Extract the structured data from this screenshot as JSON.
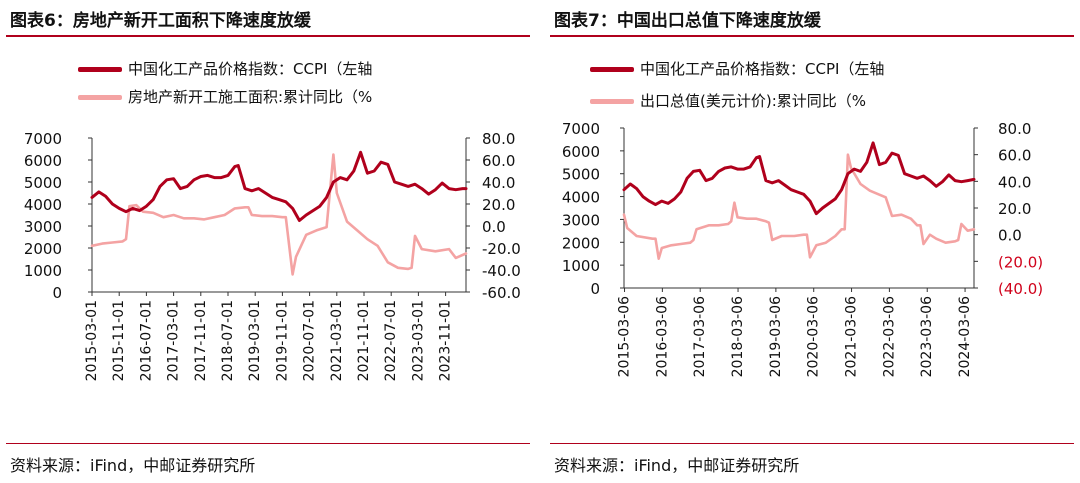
{
  "colors": {
    "accent": "#b0001c",
    "ccpi": "#b0001c",
    "secondary": "#f4a3a3",
    "negative_tick": "#d0021b"
  },
  "source_text": "资料来源：iFind，中邮证券研究所",
  "panels": [
    {
      "title": "图表6：房地产新开工面积下降速度放缓",
      "legend": [
        "中国化工产品价格指数：CCPI（左轴",
        "房地产新开工施工面积:累计同比（%"
      ]
    },
    {
      "title": "图表7：中国出口总值下降速度放缓",
      "legend": [
        "中国化工产品价格指数：CCPI（左轴",
        "出口总值(美元计价):累计同比（%"
      ]
    }
  ],
  "chart_data": [
    {
      "type": "line",
      "title": "图表6：房地产新开工面积下降速度放缓",
      "x_range": [
        "2015-03",
        "2024-05"
      ],
      "x_tick_labels": [
        "2015-03-01",
        "2015-11-01",
        "2016-07-01",
        "2017-03-01",
        "2017-11-01",
        "2018-07-01",
        "2019-03-01",
        "2019-11-01",
        "2020-07-01",
        "2021-03-01",
        "2021-11-01",
        "2022-07-01",
        "2023-03-01",
        "2023-11-01"
      ],
      "y_left": {
        "ticks": [
          "0",
          "1000",
          "2000",
          "3000",
          "4000",
          "5000",
          "6000",
          "7000"
        ],
        "range": [
          0,
          7000
        ]
      },
      "y_right": {
        "ticks": [
          "-60.0",
          "-40.0",
          "-20.0",
          "0.0",
          "20.0",
          "40.0",
          "60.0",
          "80.0"
        ],
        "range": [
          -60,
          80
        ]
      },
      "grid": false,
      "legend_position": "top",
      "series": [
        {
          "name": "中国化工产品价格指数：CCPI（左轴",
          "axis": "left",
          "color": "#b0001c",
          "points": [
            [
              "2015-03",
              4300
            ],
            [
              "2015-05",
              4550
            ],
            [
              "2015-07",
              4350
            ],
            [
              "2015-09",
              4000
            ],
            [
              "2015-11",
              3800
            ],
            [
              "2016-01",
              3650
            ],
            [
              "2016-03",
              3800
            ],
            [
              "2016-05",
              3700
            ],
            [
              "2016-07",
              3900
            ],
            [
              "2016-09",
              4200
            ],
            [
              "2016-11",
              4800
            ],
            [
              "2017-01",
              5100
            ],
            [
              "2017-03",
              5150
            ],
            [
              "2017-05",
              4700
            ],
            [
              "2017-07",
              4800
            ],
            [
              "2017-09",
              5100
            ],
            [
              "2017-11",
              5250
            ],
            [
              "2018-01",
              5300
            ],
            [
              "2018-03",
              5200
            ],
            [
              "2018-05",
              5200
            ],
            [
              "2018-07",
              5300
            ],
            [
              "2018-09",
              5700
            ],
            [
              "2018-10",
              5750
            ],
            [
              "2018-12",
              4700
            ],
            [
              "2019-02",
              4600
            ],
            [
              "2019-04",
              4700
            ],
            [
              "2019-06",
              4500
            ],
            [
              "2019-08",
              4300
            ],
            [
              "2019-10",
              4200
            ],
            [
              "2019-12",
              4100
            ],
            [
              "2020-02",
              3800
            ],
            [
              "2020-04",
              3250
            ],
            [
              "2020-06",
              3500
            ],
            [
              "2020-08",
              3700
            ],
            [
              "2020-10",
              3900
            ],
            [
              "2020-12",
              4300
            ],
            [
              "2021-02",
              5000
            ],
            [
              "2021-04",
              5200
            ],
            [
              "2021-06",
              5100
            ],
            [
              "2021-08",
              5500
            ],
            [
              "2021-10",
              6350
            ],
            [
              "2021-12",
              5400
            ],
            [
              "2022-02",
              5500
            ],
            [
              "2022-04",
              5900
            ],
            [
              "2022-06",
              5800
            ],
            [
              "2022-08",
              5000
            ],
            [
              "2022-10",
              4900
            ],
            [
              "2022-12",
              4800
            ],
            [
              "2023-02",
              4900
            ],
            [
              "2023-04",
              4700
            ],
            [
              "2023-06",
              4450
            ],
            [
              "2023-08",
              4650
            ],
            [
              "2023-10",
              4950
            ],
            [
              "2023-12",
              4700
            ],
            [
              "2024-02",
              4650
            ],
            [
              "2024-04",
              4700
            ],
            [
              "2024-05",
              4700
            ]
          ]
        },
        {
          "name": "房地产新开工施工面积:累计同比（%",
          "axis": "right",
          "color": "#f4a3a3",
          "points": [
            [
              "2015-03",
              -18
            ],
            [
              "2015-06",
              -16
            ],
            [
              "2015-09",
              -15
            ],
            [
              "2015-12",
              -14
            ],
            [
              "2016-01",
              -12
            ],
            [
              "2016-02",
              18
            ],
            [
              "2016-04",
              19
            ],
            [
              "2016-06",
              13
            ],
            [
              "2016-09",
              12
            ],
            [
              "2016-12",
              8
            ],
            [
              "2017-03",
              10
            ],
            [
              "2017-06",
              7
            ],
            [
              "2017-09",
              7
            ],
            [
              "2017-12",
              6
            ],
            [
              "2018-03",
              8
            ],
            [
              "2018-06",
              10
            ],
            [
              "2018-09",
              16
            ],
            [
              "2018-12",
              17
            ],
            [
              "2019-01",
              17
            ],
            [
              "2019-02",
              10
            ],
            [
              "2019-05",
              9
            ],
            [
              "2019-08",
              9
            ],
            [
              "2019-11",
              8
            ],
            [
              "2019-12",
              8
            ],
            [
              "2020-02",
              -44
            ],
            [
              "2020-03",
              -28
            ],
            [
              "2020-06",
              -8
            ],
            [
              "2020-09",
              -4
            ],
            [
              "2020-12",
              -1
            ],
            [
              "2021-02",
              65
            ],
            [
              "2021-03",
              30
            ],
            [
              "2021-06",
              4
            ],
            [
              "2021-09",
              -4
            ],
            [
              "2021-12",
              -12
            ],
            [
              "2022-03",
              -18
            ],
            [
              "2022-06",
              -33
            ],
            [
              "2022-09",
              -38
            ],
            [
              "2022-12",
              -39
            ],
            [
              "2023-01",
              -38
            ],
            [
              "2023-02",
              -9
            ],
            [
              "2023-04",
              -21
            ],
            [
              "2023-08",
              -23
            ],
            [
              "2023-12",
              -21
            ],
            [
              "2024-02",
              -29
            ],
            [
              "2024-05",
              -25
            ]
          ]
        }
      ]
    },
    {
      "type": "line",
      "title": "图表7：中国出口总值下降速度放缓",
      "x_range": [
        "2015-03",
        "2024-06"
      ],
      "x_tick_labels": [
        "2015-03-06",
        "2016-03-06",
        "2017-03-06",
        "2018-03-06",
        "2019-03-06",
        "2020-03-06",
        "2021-03-06",
        "2022-03-06",
        "2023-03-06",
        "2024-03-06"
      ],
      "y_left": {
        "ticks": [
          "0",
          "1000",
          "2000",
          "3000",
          "4000",
          "5000",
          "6000",
          "7000"
        ],
        "range": [
          0,
          7000
        ]
      },
      "y_right": {
        "ticks": [
          "(40.0)",
          "(20.0)",
          "0.0",
          "20.0",
          "40.0",
          "60.0",
          "80.0"
        ],
        "range": [
          -40,
          80
        ]
      },
      "grid": false,
      "legend_position": "top",
      "series": [
        {
          "name": "中国化工产品价格指数：CCPI（左轴",
          "axis": "left",
          "color": "#b0001c",
          "points": [
            [
              "2015-03",
              4300
            ],
            [
              "2015-05",
              4550
            ],
            [
              "2015-07",
              4350
            ],
            [
              "2015-09",
              4000
            ],
            [
              "2015-11",
              3800
            ],
            [
              "2016-01",
              3650
            ],
            [
              "2016-03",
              3800
            ],
            [
              "2016-05",
              3700
            ],
            [
              "2016-07",
              3900
            ],
            [
              "2016-09",
              4200
            ],
            [
              "2016-11",
              4800
            ],
            [
              "2017-01",
              5100
            ],
            [
              "2017-03",
              5150
            ],
            [
              "2017-05",
              4700
            ],
            [
              "2017-07",
              4800
            ],
            [
              "2017-09",
              5100
            ],
            [
              "2017-11",
              5250
            ],
            [
              "2018-01",
              5300
            ],
            [
              "2018-03",
              5200
            ],
            [
              "2018-05",
              5200
            ],
            [
              "2018-07",
              5300
            ],
            [
              "2018-09",
              5700
            ],
            [
              "2018-10",
              5750
            ],
            [
              "2018-12",
              4700
            ],
            [
              "2019-02",
              4600
            ],
            [
              "2019-04",
              4700
            ],
            [
              "2019-06",
              4500
            ],
            [
              "2019-08",
              4300
            ],
            [
              "2019-10",
              4200
            ],
            [
              "2019-12",
              4100
            ],
            [
              "2020-02",
              3800
            ],
            [
              "2020-04",
              3250
            ],
            [
              "2020-06",
              3500
            ],
            [
              "2020-08",
              3700
            ],
            [
              "2020-10",
              3900
            ],
            [
              "2020-12",
              4300
            ],
            [
              "2021-02",
              5000
            ],
            [
              "2021-04",
              5200
            ],
            [
              "2021-06",
              5100
            ],
            [
              "2021-08",
              5500
            ],
            [
              "2021-10",
              6350
            ],
            [
              "2021-12",
              5400
            ],
            [
              "2022-02",
              5500
            ],
            [
              "2022-04",
              5900
            ],
            [
              "2022-06",
              5800
            ],
            [
              "2022-08",
              5000
            ],
            [
              "2022-10",
              4900
            ],
            [
              "2022-12",
              4800
            ],
            [
              "2023-02",
              4900
            ],
            [
              "2023-04",
              4700
            ],
            [
              "2023-06",
              4450
            ],
            [
              "2023-08",
              4650
            ],
            [
              "2023-10",
              4950
            ],
            [
              "2023-12",
              4700
            ],
            [
              "2024-02",
              4650
            ],
            [
              "2024-04",
              4700
            ],
            [
              "2024-06",
              4750
            ]
          ]
        },
        {
          "name": "出口总值(美元计价):累计同比（%",
          "axis": "right",
          "color": "#f4a3a3",
          "points": [
            [
              "2015-03",
              15
            ],
            [
              "2015-04",
              5
            ],
            [
              "2015-07",
              -1
            ],
            [
              "2015-12",
              -3
            ],
            [
              "2016-01",
              -3
            ],
            [
              "2016-02",
              -18
            ],
            [
              "2016-03",
              -10
            ],
            [
              "2016-06",
              -8
            ],
            [
              "2016-09",
              -7
            ],
            [
              "2016-12",
              -6
            ],
            [
              "2017-01",
              -4
            ],
            [
              "2017-02",
              4
            ],
            [
              "2017-06",
              7
            ],
            [
              "2017-09",
              7
            ],
            [
              "2017-12",
              8
            ],
            [
              "2018-01",
              10
            ],
            [
              "2018-02",
              24
            ],
            [
              "2018-03",
              13
            ],
            [
              "2018-06",
              12
            ],
            [
              "2018-09",
              12
            ],
            [
              "2018-12",
              10
            ],
            [
              "2019-01",
              9
            ],
            [
              "2019-02",
              -4
            ],
            [
              "2019-05",
              -1
            ],
            [
              "2019-09",
              -1
            ],
            [
              "2019-12",
              0
            ],
            [
              "2020-01",
              0
            ],
            [
              "2020-02",
              -17
            ],
            [
              "2020-04",
              -8
            ],
            [
              "2020-07",
              -6
            ],
            [
              "2020-10",
              -1
            ],
            [
              "2020-12",
              4
            ],
            [
              "2021-01",
              4
            ],
            [
              "2021-02",
              60
            ],
            [
              "2021-03",
              50
            ],
            [
              "2021-06",
              38
            ],
            [
              "2021-09",
              33
            ],
            [
              "2021-12",
              30
            ],
            [
              "2022-02",
              28
            ],
            [
              "2022-04",
              14
            ],
            [
              "2022-07",
              15
            ],
            [
              "2022-10",
              12
            ],
            [
              "2022-12",
              7
            ],
            [
              "2023-01",
              7
            ],
            [
              "2023-02",
              -7
            ],
            [
              "2023-04",
              0
            ],
            [
              "2023-06",
              -3
            ],
            [
              "2023-09",
              -6
            ],
            [
              "2023-12",
              -5
            ],
            [
              "2024-01",
              -4
            ],
            [
              "2024-02",
              8
            ],
            [
              "2024-04",
              3
            ],
            [
              "2024-06",
              4
            ]
          ]
        }
      ]
    }
  ]
}
